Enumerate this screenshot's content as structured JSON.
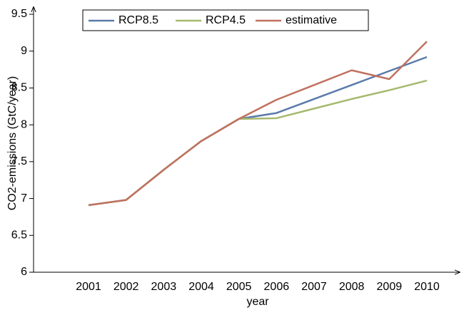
{
  "chart_data": {
    "type": "line",
    "y_label": "CO2-emissions (GtC/year)",
    "x_label": "year",
    "categories": [
      "2001",
      "2002",
      "2003",
      "2004",
      "2005",
      "2006",
      "2007",
      "2008",
      "2009",
      "2010"
    ],
    "series": [
      {
        "name": "RCP8.5",
        "color": "#5a7aab",
        "values": [
          6.91,
          6.98,
          7.39,
          7.78,
          8.08,
          8.16,
          8.35,
          8.54,
          8.73,
          8.92
        ]
      },
      {
        "name": "RCP4.5",
        "color": "#a5b96f",
        "values": [
          6.91,
          6.98,
          7.39,
          7.78,
          8.08,
          8.09,
          8.22,
          8.35,
          8.47,
          8.6
        ]
      },
      {
        "name": "estimative",
        "color": "#c0715f",
        "values": [
          6.91,
          6.98,
          7.39,
          7.78,
          8.08,
          8.34,
          8.54,
          8.74,
          8.62,
          9.13
        ]
      }
    ],
    "ylim": [
      6,
      9.5
    ],
    "yticks": [
      6,
      6.5,
      7,
      7.5,
      8,
      8.5,
      9,
      9.5
    ],
    "grid": false
  }
}
